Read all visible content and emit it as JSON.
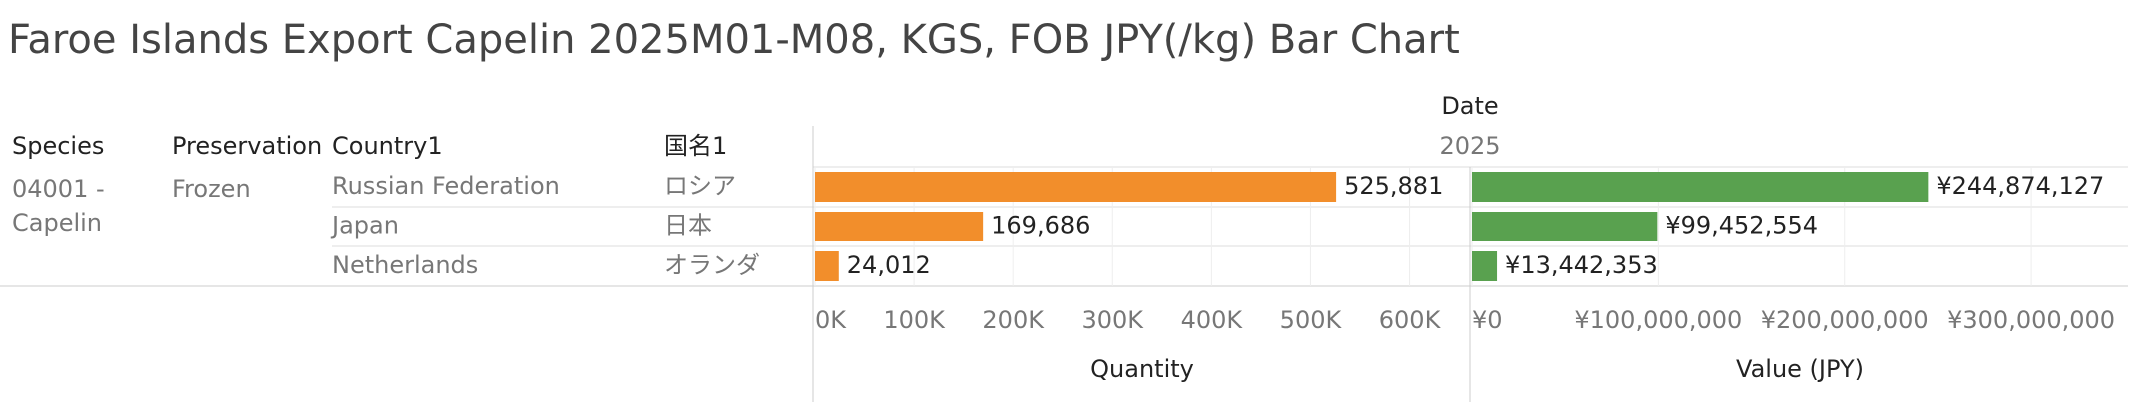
{
  "title": "Faroe Islands Export Capelin 2025M01-M08, KGS, FOB JPY(/kg) Bar Chart",
  "header": {
    "date_label": "Date",
    "year": "2025"
  },
  "columns": [
    "Species",
    "Preservation",
    "Country1",
    "国名1"
  ],
  "rows": [
    {
      "species": "04001 - Capelin",
      "preservation": "Frozen",
      "country": "Russian Federation",
      "name_ja": "ロシア"
    },
    {
      "country": "Japan",
      "name_ja": "日本"
    },
    {
      "country": "Netherlands",
      "name_ja": "オランダ"
    }
  ],
  "chart_data": [
    {
      "type": "bar",
      "orientation": "horizontal",
      "x_label": "Quantity",
      "color": "#f28e2b",
      "categories": [
        "Russian Federation",
        "Japan",
        "Netherlands"
      ],
      "values": [
        525881,
        169686,
        24012
      ],
      "value_labels": [
        "525,881",
        "169,686",
        "24,012"
      ],
      "xlim": [
        0,
        660000
      ],
      "xticks": [
        {
          "value": 0,
          "label": "0K"
        },
        {
          "value": 100000,
          "label": "100K"
        },
        {
          "value": 200000,
          "label": "200K"
        },
        {
          "value": 300000,
          "label": "300K"
        },
        {
          "value": 400000,
          "label": "400K"
        },
        {
          "value": 500000,
          "label": "500K"
        },
        {
          "value": 600000,
          "label": "600K"
        }
      ],
      "grid": true
    },
    {
      "type": "bar",
      "orientation": "horizontal",
      "x_label": "Value (JPY)",
      "color": "#59a14f",
      "categories": [
        "Russian Federation",
        "Japan",
        "Netherlands"
      ],
      "values": [
        244874127,
        99452554,
        13442353
      ],
      "value_labels": [
        "¥244,874,127",
        "¥99,452,554",
        "¥13,442,353"
      ],
      "xlim": [
        0,
        352000000
      ],
      "xticks": [
        {
          "value": 0,
          "label": "¥0"
        },
        {
          "value": 100000000,
          "label": "¥100,000,000"
        },
        {
          "value": 200000000,
          "label": "¥200,000,000"
        },
        {
          "value": 300000000,
          "label": "¥300,000,000"
        }
      ],
      "grid": true
    }
  ]
}
